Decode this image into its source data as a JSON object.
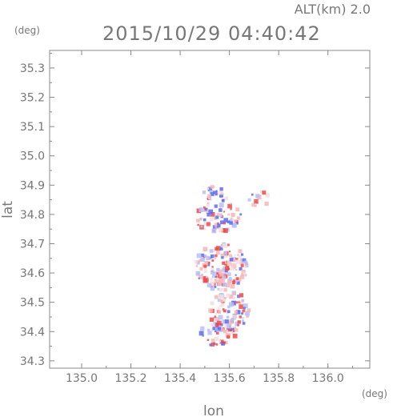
{
  "header": {
    "altitude_label": "ALT(km) 2.0",
    "timestamp": "2015/10/29 04:40:42",
    "y_unit": "(deg)",
    "x_unit": "(deg)"
  },
  "chart_data": {
    "type": "heatmap",
    "xlabel": "lon",
    "ylabel": "lat",
    "xlim": [
      134.87,
      136.17
    ],
    "ylim": [
      34.275,
      35.36
    ],
    "x_ticks": [
      135.0,
      135.2,
      135.4,
      135.6,
      135.8,
      136.0
    ],
    "x_tick_labels": [
      "135.0",
      "135.2",
      "135.4",
      "135.6",
      "135.8",
      "136.0"
    ],
    "y_ticks": [
      34.3,
      34.4,
      34.5,
      34.6,
      34.7,
      34.8,
      34.9,
      35.0,
      35.1,
      35.2,
      35.3
    ],
    "y_tick_labels": [
      "34.3",
      "34.4",
      "34.5",
      "34.6",
      "34.7",
      "34.8",
      "34.9",
      "35.0",
      "35.1",
      "35.2",
      "35.3"
    ],
    "grid": false,
    "colors": {
      "positive": "#ef4a4a",
      "negative": "#5a6cf0",
      "neutral": "#f4dede",
      "axis": "#888888"
    },
    "field_clusters": [
      {
        "lon": 135.55,
        "lat": 34.8,
        "r_lon": 0.1,
        "r_lat": 0.06,
        "count": 70
      },
      {
        "lon": 135.53,
        "lat": 34.88,
        "r_lon": 0.05,
        "r_lat": 0.03,
        "count": 20
      },
      {
        "lon": 135.57,
        "lat": 34.62,
        "r_lon": 0.11,
        "r_lat": 0.08,
        "count": 170
      },
      {
        "lon": 135.6,
        "lat": 34.47,
        "r_lon": 0.08,
        "r_lat": 0.07,
        "count": 90
      },
      {
        "lon": 135.55,
        "lat": 34.39,
        "r_lon": 0.08,
        "r_lat": 0.04,
        "count": 45
      },
      {
        "lon": 135.74,
        "lat": 34.85,
        "r_lon": 0.06,
        "r_lat": 0.03,
        "count": 12
      }
    ]
  }
}
